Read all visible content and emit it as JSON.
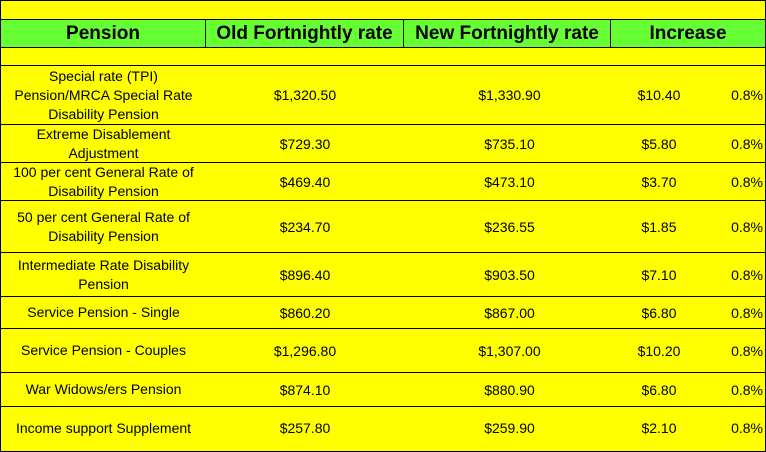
{
  "table": {
    "headers": [
      "Pension",
      "Old Fortnightly rate",
      "New Fortnightly rate",
      "Increase"
    ],
    "rows": [
      {
        "name": "Special rate (TPI) Pension/MRCA Special Rate Disability Pension",
        "old": "$1,320.50",
        "new": "$1,330.90",
        "increase": "$10.40",
        "percent": "0.8%"
      },
      {
        "name": "Extreme Disablement Adjustment",
        "old": "$729.30",
        "new": "$735.10",
        "increase": "$5.80",
        "percent": "0.8%"
      },
      {
        "name": "100 per cent General Rate of Disability Pension",
        "old": "$469.40",
        "new": "$473.10",
        "increase": "$3.70",
        "percent": "0.8%"
      },
      {
        "name": "50 per cent General Rate of Disability Pension",
        "old": "$234.70",
        "new": "$236.55",
        "increase": "$1.85",
        "percent": "0.8%"
      },
      {
        "name": "Intermediate Rate Disability Pension",
        "old": "$896.40",
        "new": "$903.50",
        "increase": "$7.10",
        "percent": "0.8%"
      },
      {
        "name": "Service Pension - Single",
        "old": "$860.20",
        "new": "$867.00",
        "increase": "$6.80",
        "percent": "0.8%"
      },
      {
        "name": "Service Pension - Couples",
        "old": "$1,296.80",
        "new": "$1,307.00",
        "increase": "$10.20",
        "percent": "0.8%"
      },
      {
        "name": "War Widows/ers Pension",
        "old": "$874.10",
        "new": "$880.90",
        "increase": "$6.80",
        "percent": "0.8%"
      },
      {
        "name": "Income support Supplement",
        "old": "$257.80",
        "new": "$259.90",
        "increase": "$2.10",
        "percent": "0.8%"
      }
    ]
  }
}
